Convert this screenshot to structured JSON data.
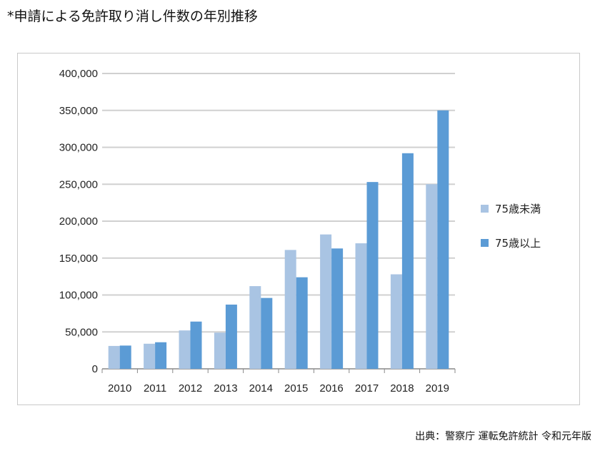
{
  "heading": "*申請による免許取り消し件数の年別推移",
  "source": "出典：警察庁 運転免許統計 令和元年版",
  "colors": {
    "light": "#a9c4e3",
    "dark": "#5b9bd5",
    "grid": "#d0d0d0",
    "axis": "#888888"
  },
  "chart_data": {
    "type": "bar",
    "categories": [
      "2010",
      "2011",
      "2012",
      "2013",
      "2014",
      "2015",
      "2016",
      "2017",
      "2018",
      "2019"
    ],
    "series": [
      {
        "name": "75歳未満",
        "values": [
          31000,
          34000,
          52000,
          49000,
          112000,
          161000,
          182000,
          170000,
          128000,
          250000
        ]
      },
      {
        "name": "75歳以上",
        "values": [
          31500,
          36000,
          64000,
          87000,
          96000,
          124000,
          163000,
          253000,
          292000,
          350000
        ]
      }
    ],
    "ylim": [
      0,
      400000
    ],
    "yticks": [
      "0",
      "50,000",
      "100,000",
      "150,000",
      "200,000",
      "250,000",
      "300,000",
      "350,000",
      "400,000"
    ],
    "xlabel": "",
    "ylabel": "",
    "legend": "right",
    "grid": true
  }
}
